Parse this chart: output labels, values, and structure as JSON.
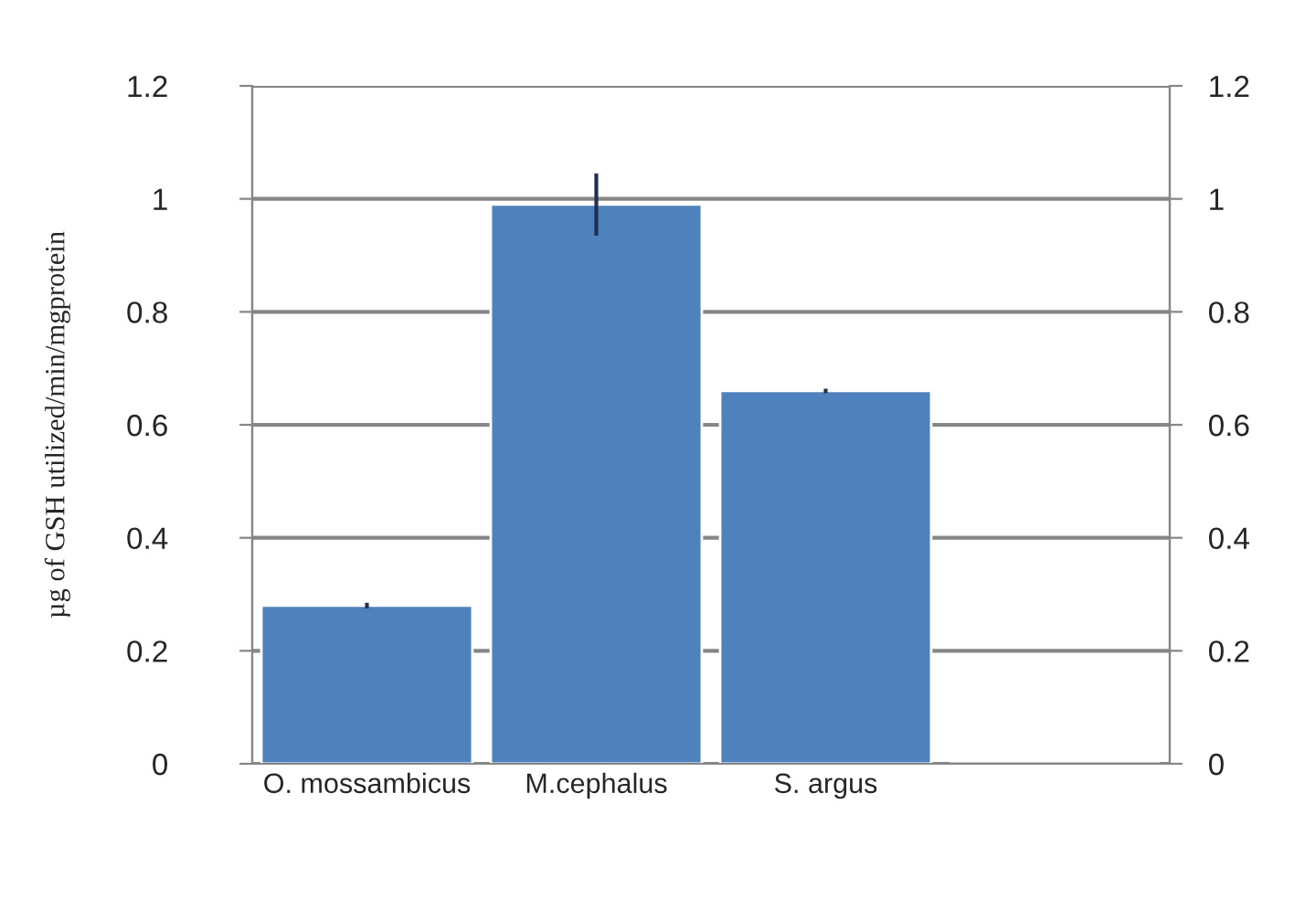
{
  "chart_data": {
    "type": "bar",
    "ylabel": "µg of GSH utilized/min/mgprotein",
    "categories": [
      "O. mossambicus",
      "M.cephalus",
      "S. argus",
      null
    ],
    "values": [
      0.28,
      0.99,
      0.66,
      null
    ],
    "errors": [
      0.005,
      0.055,
      0.004,
      null
    ],
    "color": "#4f81bd",
    "ylim": [
      0,
      1.2
    ],
    "yticks": [
      0,
      0.2,
      0.4,
      0.6,
      0.8,
      1,
      1.2
    ],
    "y2lim": [
      0,
      1.2
    ],
    "y2ticks": [
      0,
      0.2,
      0.4,
      0.6,
      0.8,
      1,
      1.2
    ],
    "grid": "y"
  }
}
